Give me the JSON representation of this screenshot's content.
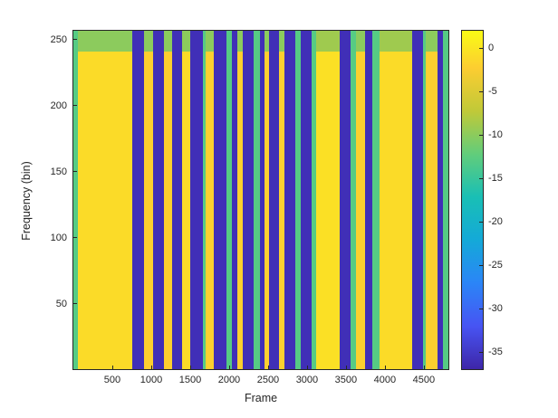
{
  "window": {
    "background": "#ffffff"
  },
  "chart_data": {
    "type": "heatmap",
    "title": "",
    "xlabel": "Frame",
    "ylabel": "Frequency (bin)",
    "xlim": [
      0,
      4815
    ],
    "ylim": [
      1,
      257
    ],
    "x_ticks": [
      500,
      1000,
      1500,
      2000,
      2500,
      3000,
      3500,
      4000,
      4500
    ],
    "y_ticks": [
      50,
      100,
      150,
      200,
      250
    ],
    "grid": false,
    "legend": "none",
    "colorbar": {
      "position": "right",
      "clim": [
        -37,
        2
      ],
      "ticks": [
        0,
        -5,
        -10,
        -15,
        -20,
        -25,
        -30,
        -35
      ],
      "colormap": "parula"
    },
    "colormap_stops": [
      [
        0.0,
        "#3e26a8"
      ],
      [
        0.127,
        "#4754f3"
      ],
      [
        0.254,
        "#2b85f7"
      ],
      [
        0.381,
        "#14a9d8"
      ],
      [
        0.508,
        "#19bfb5"
      ],
      [
        0.635,
        "#61cd7b"
      ],
      [
        0.762,
        "#c0c938"
      ],
      [
        0.889,
        "#fccd31"
      ],
      [
        1.0,
        "#f9fb15"
      ]
    ],
    "top_band_start_bin": 241,
    "segments": [
      {
        "x0": 0,
        "x1": 60,
        "v": -13
      },
      {
        "x0": 60,
        "x1": 760,
        "v": -1,
        "vt": -10
      },
      {
        "x0": 760,
        "x1": 905,
        "v": -36
      },
      {
        "x0": 905,
        "x1": 1020,
        "v": -2,
        "vt": -10
      },
      {
        "x0": 1020,
        "x1": 1160,
        "v": -36
      },
      {
        "x0": 1160,
        "x1": 1270,
        "v": -2,
        "vt": -10
      },
      {
        "x0": 1270,
        "x1": 1390,
        "v": -36
      },
      {
        "x0": 1390,
        "x1": 1500,
        "v": -1,
        "vt": -10
      },
      {
        "x0": 1500,
        "x1": 1665,
        "v": -36
      },
      {
        "x0": 1665,
        "x1": 1700,
        "v": -13
      },
      {
        "x0": 1700,
        "x1": 1805,
        "v": -2,
        "vt": -10
      },
      {
        "x0": 1805,
        "x1": 1965,
        "v": -36
      },
      {
        "x0": 1965,
        "x1": 2035,
        "v": -13
      },
      {
        "x0": 2035,
        "x1": 2105,
        "v": -36
      },
      {
        "x0": 2105,
        "x1": 2175,
        "v": -2,
        "vt": -10
      },
      {
        "x0": 2175,
        "x1": 2315,
        "v": -36
      },
      {
        "x0": 2315,
        "x1": 2395,
        "v": -13
      },
      {
        "x0": 2395,
        "x1": 2455,
        "v": -36
      },
      {
        "x0": 2455,
        "x1": 2510,
        "v": -2,
        "vt": -10
      },
      {
        "x0": 2510,
        "x1": 2640,
        "v": -36
      },
      {
        "x0": 2640,
        "x1": 2705,
        "v": -2,
        "vt": -10
      },
      {
        "x0": 2705,
        "x1": 2845,
        "v": -36
      },
      {
        "x0": 2845,
        "x1": 2925,
        "v": -13
      },
      {
        "x0": 2925,
        "x1": 3055,
        "v": -36
      },
      {
        "x0": 3055,
        "x1": 3120,
        "v": -13
      },
      {
        "x0": 3120,
        "x1": 3425,
        "v": -0.5,
        "vt": -9
      },
      {
        "x0": 3425,
        "x1": 3560,
        "v": -36
      },
      {
        "x0": 3560,
        "x1": 3625,
        "v": -13
      },
      {
        "x0": 3625,
        "x1": 3750,
        "v": -2,
        "vt": -10
      },
      {
        "x0": 3750,
        "x1": 3840,
        "v": -36
      },
      {
        "x0": 3840,
        "x1": 3930,
        "v": -13
      },
      {
        "x0": 3930,
        "x1": 4350,
        "v": -1,
        "vt": -9
      },
      {
        "x0": 4350,
        "x1": 4490,
        "v": -36
      },
      {
        "x0": 4490,
        "x1": 4530,
        "v": -13
      },
      {
        "x0": 4530,
        "x1": 4675,
        "v": -2,
        "vt": -10
      },
      {
        "x0": 4675,
        "x1": 4740,
        "v": -36
      },
      {
        "x0": 4740,
        "x1": 4815,
        "v": -13
      }
    ]
  }
}
